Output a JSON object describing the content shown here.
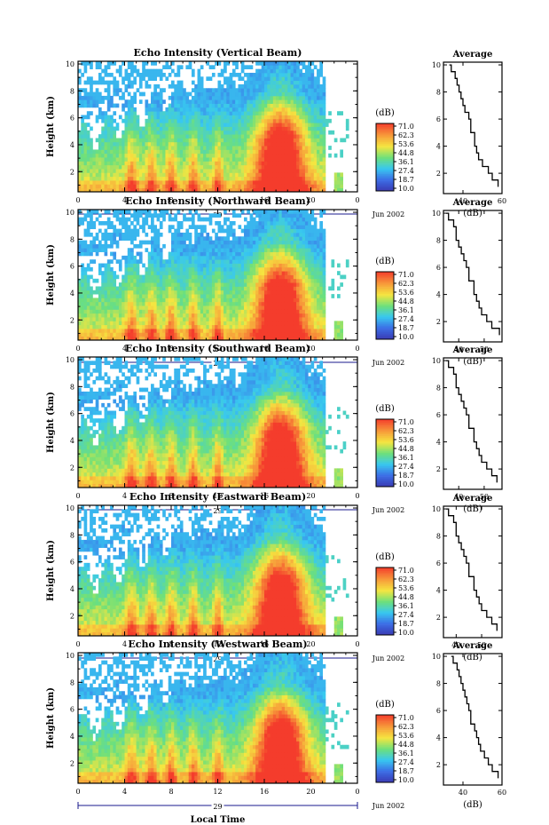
{
  "figure": {
    "x_tick_labels": [
      "0",
      "4",
      "8",
      "12",
      "16",
      "20",
      "0"
    ],
    "day_label": "29",
    "month_label": "Jun 2002",
    "xlabel": "Local Time",
    "colorbar_unit": "(dB)",
    "colorbar_ticks": [
      "71.0",
      "62.3",
      "53.6",
      "44.8",
      "36.1",
      "27.4",
      "18.7",
      "10.0"
    ],
    "average_title": "Average",
    "average_xlabel": "(dB)",
    "colors": {
      "dark_blue": "#3a3ab4",
      "cyan": "#38c8f0",
      "green": "#6ee07a",
      "yellow": "#f5e640",
      "orange": "#f79b3a",
      "red": "#f43c2c",
      "axis_blue": "#1a1a8c"
    }
  },
  "chart_data": [
    {
      "type": "heatmap",
      "title": "Echo Intensity (Vertical Beam)",
      "ylabel": "Height (km)",
      "xlabel": "",
      "x_unit": "hour (Local Time)",
      "xlim": [
        0,
        24
      ],
      "ylim": [
        0.5,
        10.2
      ],
      "yticks": [
        "2",
        "4",
        "6",
        "8",
        "10"
      ],
      "zlim": [
        10.0,
        71.0
      ],
      "profile": {
        "title": "Average",
        "xlabel": "(dB)",
        "xlim": [
          30,
          60
        ],
        "xticks": [
          "40",
          "60"
        ],
        "yticks": [
          "2",
          "4",
          "6",
          "8",
          "10"
        ],
        "height_km": [
          1.0,
          1.5,
          2.0,
          2.5,
          3.0,
          3.5,
          4.0,
          4.5,
          5.0,
          5.5,
          6.0,
          6.5,
          7.0,
          7.5,
          8.0,
          8.5,
          9.0,
          9.5,
          10.0
        ],
        "value_db": [
          58,
          55,
          53,
          50,
          48,
          47,
          46,
          46,
          44,
          44,
          43,
          41,
          40,
          39,
          38,
          37,
          36,
          34,
          33
        ]
      }
    },
    {
      "type": "heatmap",
      "title": "Echo Intensity (Northward Beam)",
      "ylabel": "Height (km)",
      "xlabel": "",
      "x_unit": "hour (Local Time)",
      "xlim": [
        0,
        24
      ],
      "ylim": [
        0.5,
        10.2
      ],
      "yticks": [
        "2",
        "4",
        "6",
        "8",
        "10"
      ],
      "zlim": [
        10.0,
        71.0
      ],
      "profile": {
        "title": "Average",
        "xlabel": "(dB)",
        "xlim": [
          34,
          57
        ],
        "xticks": [
          "40",
          "50"
        ],
        "yticks": [
          "2",
          "4",
          "6",
          "8",
          "10"
        ],
        "height_km": [
          1.0,
          1.5,
          2.0,
          2.5,
          3.0,
          3.5,
          4.0,
          4.5,
          5.0,
          5.5,
          6.0,
          6.5,
          7.0,
          7.5,
          8.0,
          8.5,
          9.0,
          9.5,
          10.0
        ],
        "value_db": [
          56,
          53,
          51,
          49,
          48,
          47,
          46,
          46,
          44,
          44,
          43,
          42,
          41,
          40,
          39,
          39,
          38,
          36,
          35
        ]
      }
    },
    {
      "type": "heatmap",
      "title": "Echo Intensity (Southward Beam)",
      "ylabel": "Height (km)",
      "xlabel": "",
      "x_unit": "hour (Local Time)",
      "xlim": [
        0,
        24
      ],
      "ylim": [
        0.5,
        10.2
      ],
      "yticks": [
        "2",
        "4",
        "6",
        "8",
        "10"
      ],
      "zlim": [
        10.0,
        71.0
      ],
      "profile": {
        "title": "Average",
        "xlabel": "(dB)",
        "xlim": [
          34,
          57
        ],
        "xticks": [
          "40",
          "50"
        ],
        "yticks": [
          "2",
          "4",
          "6",
          "8",
          "10"
        ],
        "height_km": [
          1.0,
          1.5,
          2.0,
          2.5,
          3.0,
          3.5,
          4.0,
          4.5,
          5.0,
          5.5,
          6.0,
          6.5,
          7.0,
          7.5,
          8.0,
          8.5,
          9.0,
          9.5,
          10.0
        ],
        "value_db": [
          55,
          53,
          51,
          49,
          48,
          47,
          46,
          46,
          44,
          44,
          43,
          42,
          41,
          40,
          39,
          39,
          38,
          36,
          35
        ]
      }
    },
    {
      "type": "heatmap",
      "title": "Echo Intensity (Eastward Beam)",
      "ylabel": "Height (km)",
      "xlabel": "",
      "x_unit": "hour (Local Time)",
      "xlim": [
        0,
        24
      ],
      "ylim": [
        0.5,
        10.2
      ],
      "yticks": [
        "2",
        "4",
        "6",
        "8",
        "10"
      ],
      "zlim": [
        10.0,
        71.0
      ],
      "profile": {
        "title": "Average",
        "xlabel": "(dB)",
        "xlim": [
          35,
          58
        ],
        "xticks": [
          "40",
          "50"
        ],
        "yticks": [
          "2",
          "4",
          "6",
          "8",
          "10"
        ],
        "height_km": [
          1.0,
          1.5,
          2.0,
          2.5,
          3.0,
          3.5,
          4.0,
          4.5,
          5.0,
          5.5,
          6.0,
          6.5,
          7.0,
          7.5,
          8.0,
          8.5,
          9.0,
          9.5,
          10.0
        ],
        "value_db": [
          56,
          54,
          52,
          50,
          49,
          48,
          47,
          47,
          45,
          45,
          44,
          43,
          42,
          41,
          40,
          40,
          39,
          37,
          36
        ]
      }
    },
    {
      "type": "heatmap",
      "title": "Echo Intensity (Westward Beam)",
      "ylabel": "Height (km)",
      "xlabel": "Local Time",
      "x_unit": "hour (Local Time)",
      "xlim": [
        0,
        24
      ],
      "ylim": [
        0.5,
        10.2
      ],
      "yticks": [
        "2",
        "4",
        "6",
        "8",
        "10"
      ],
      "zlim": [
        10.0,
        71.0
      ],
      "profile": {
        "title": "Average",
        "xlabel": "(dB)",
        "xlim": [
          30,
          60
        ],
        "xticks": [
          "40",
          "60"
        ],
        "yticks": [
          "2",
          "4",
          "6",
          "8",
          "10"
        ],
        "height_km": [
          1.0,
          1.5,
          2.0,
          2.5,
          3.0,
          3.5,
          4.0,
          4.5,
          5.0,
          5.5,
          6.0,
          6.5,
          7.0,
          7.5,
          8.0,
          8.5,
          9.0,
          9.5,
          10.0
        ],
        "value_db": [
          58,
          55,
          53,
          51,
          49,
          48,
          47,
          46,
          44,
          44,
          43,
          42,
          41,
          40,
          39,
          38,
          37,
          35,
          34
        ]
      }
    }
  ]
}
